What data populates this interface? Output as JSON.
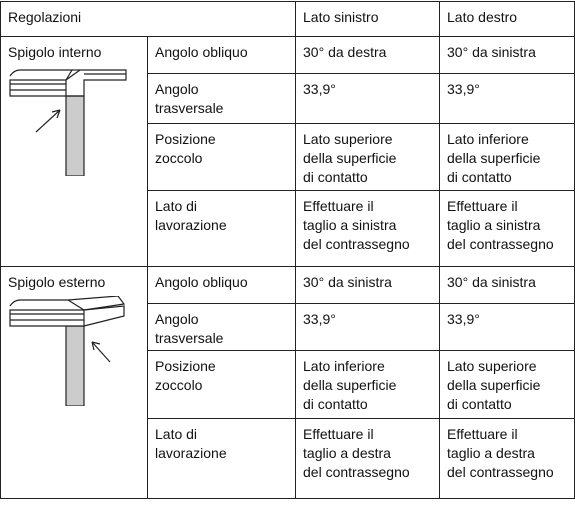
{
  "header": {
    "settings": "Regolazioni",
    "left": "Lato sinistro",
    "right": "Lato destro"
  },
  "sections": [
    {
      "title": "Spigolo interno",
      "rows": [
        {
          "label": [
            "Angolo obliquo"
          ],
          "left": [
            "30° da destra"
          ],
          "right": [
            "30° da sinistra"
          ]
        },
        {
          "label": [
            "Angolo",
            "trasversale"
          ],
          "left": [
            "33,9°"
          ],
          "right": [
            "33,9°"
          ]
        },
        {
          "label": [
            "Posizione",
            "zoccolo"
          ],
          "left": [
            "Lato superiore",
            "della superficie",
            "di contatto"
          ],
          "right": [
            "Lato inferiore",
            "della superficie",
            "di contatto"
          ]
        },
        {
          "label": [
            "Lato di",
            "lavorazione"
          ],
          "left": [
            "Effettuare il",
            "taglio a sinistra",
            "del contrassegno"
          ],
          "right": [
            "Effettuare il",
            "taglio a sinistra",
            "del contrassegno"
          ]
        }
      ]
    },
    {
      "title": "Spigolo esterno",
      "rows": [
        {
          "label": [
            "Angolo obliquo"
          ],
          "left": [
            "30° da sinistra"
          ],
          "right": [
            "30° da sinistra"
          ]
        },
        {
          "label": [
            "Angolo",
            "trasversale"
          ],
          "left": [
            "33,9°"
          ],
          "right": [
            "33,9°"
          ]
        },
        {
          "label": [
            "Posizione",
            "zoccolo"
          ],
          "left": [
            "Lato inferiore",
            "della superficie",
            "di contatto"
          ],
          "right": [
            "Lato superiore",
            "della superficie",
            "di contatto"
          ]
        },
        {
          "label": [
            "Lato di",
            "lavorazione"
          ],
          "left": [
            "Effettuare il",
            "taglio a destra",
            "del contrassegno"
          ],
          "right": [
            "Effettuare il",
            "taglio a destra",
            "del contrassegno"
          ]
        }
      ]
    }
  ]
}
